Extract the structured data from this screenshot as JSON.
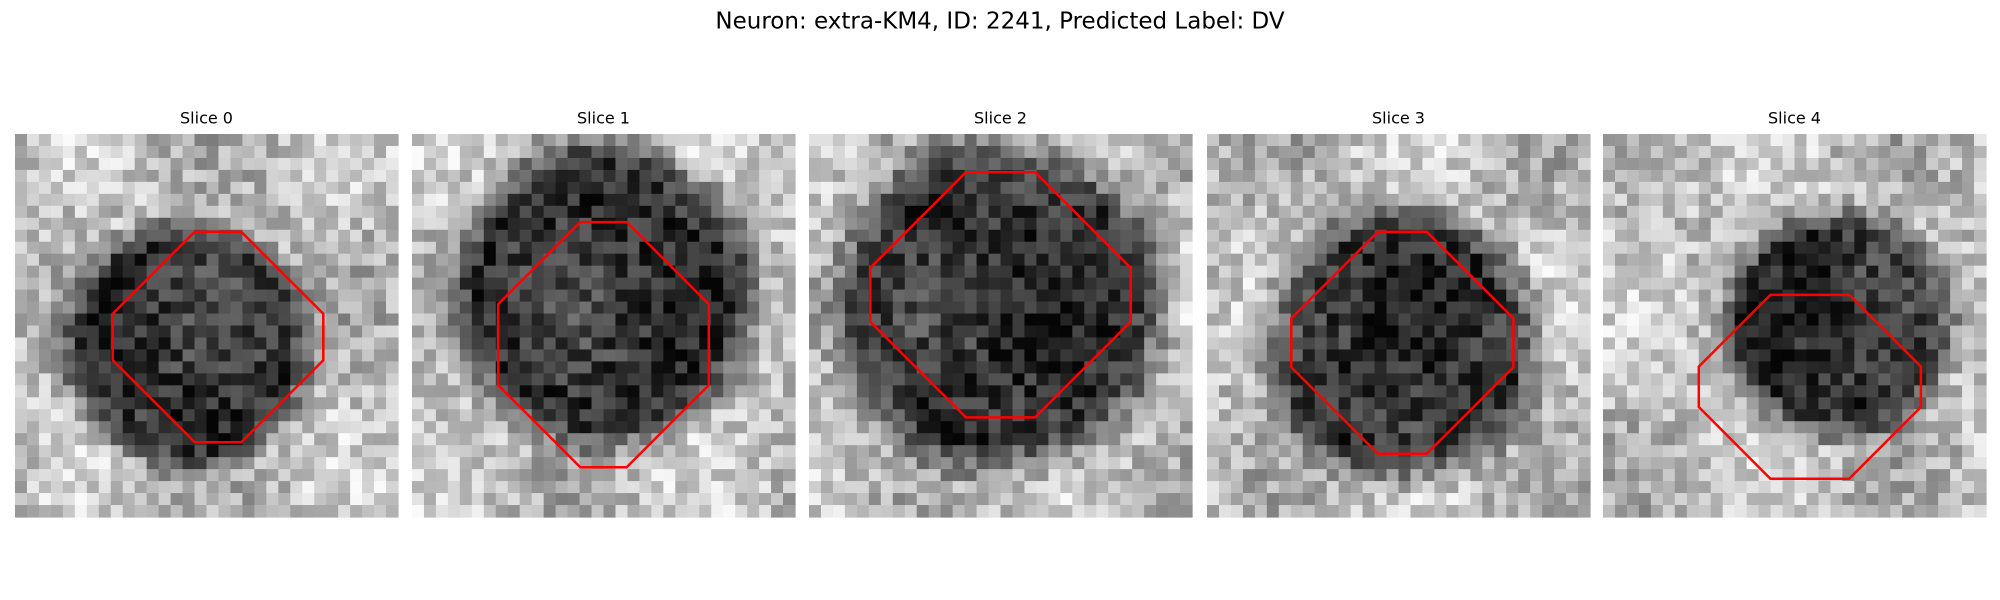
{
  "title": "Neuron: extra-KM4, ID: 2241, Predicted Label: DV",
  "panels": [
    {
      "title": "Slice 0"
    },
    {
      "title": "Slice 1"
    },
    {
      "title": "Slice 2"
    },
    {
      "title": "Slice 3"
    },
    {
      "title": "Slice 4"
    }
  ]
}
